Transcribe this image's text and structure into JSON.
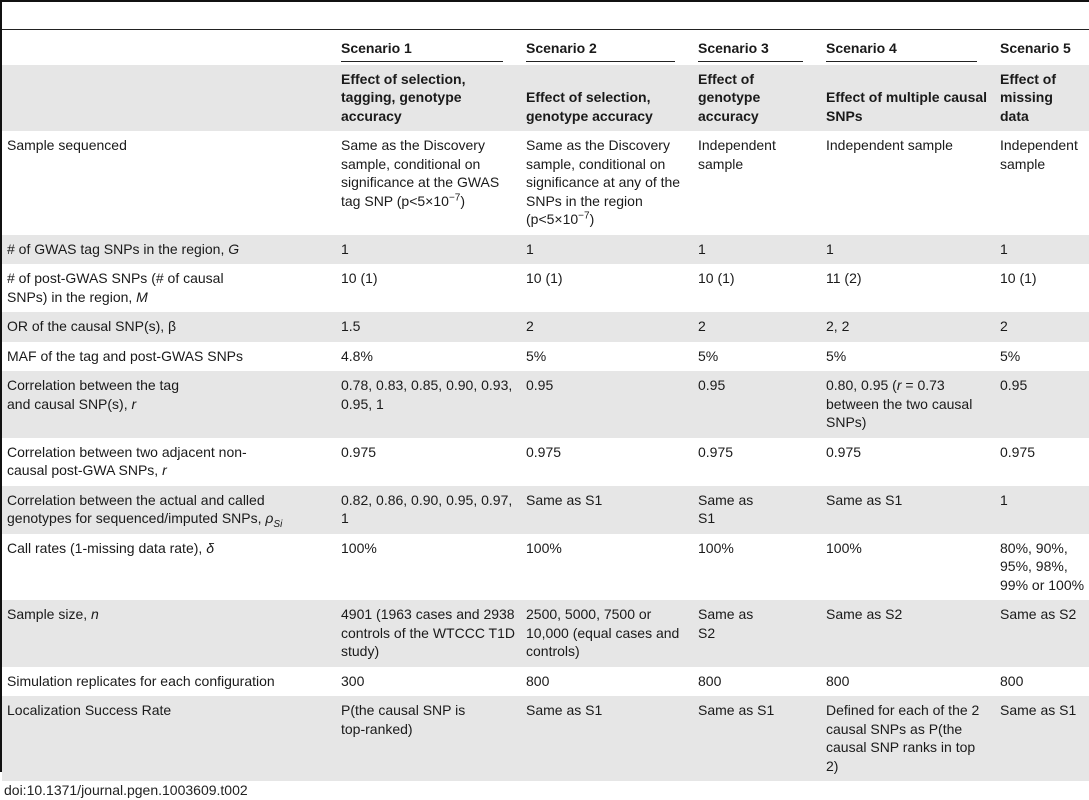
{
  "header": {
    "scenarios": [
      "Scenario 1",
      "Scenario 2",
      "Scenario 3",
      "Scenario 4",
      "Scenario 5"
    ],
    "effects": [
      "Effect of selection, tagging, genotype accuracy",
      "Effect of selection, genotype accuracy",
      "Effect of genotype accuracy",
      "Effect of multiple causal SNPs",
      "Effect of missing data"
    ]
  },
  "rows": {
    "sample_sequenced": {
      "label": "Sample sequenced",
      "s1_pre": "Same as the Discovery sample, conditional on significance at the GWAS tag SNP (p<5×10",
      "s1_exp": "−7",
      "s1_post": ")",
      "s2_pre": "Same as the Discovery sample, conditional on significance at any of the SNPs in the region (p<5×10",
      "s2_exp": "−7",
      "s2_post": ")",
      "s3": "Independent sample",
      "s4": "Independent sample",
      "s5": "Independent sample"
    },
    "gwas_tag": {
      "label": "# of GWAS tag SNPs in the region, ",
      "symbol": "G",
      "values": [
        "1",
        "1",
        "1",
        "1",
        "1"
      ]
    },
    "post_gwas": {
      "label": "# of post-GWAS SNPs (# of causal SNPs) in the region, ",
      "symbol": "M",
      "values": [
        "10 (1)",
        "10 (1)",
        "10 (1)",
        "11 (2)",
        "10 (1)"
      ]
    },
    "or_causal": {
      "label": "OR of the causal SNP(s), β",
      "values": [
        "1.5",
        "2",
        "2",
        "2, 2",
        "2"
      ]
    },
    "maf": {
      "label": "MAF of the tag and post-GWAS SNPs",
      "values": [
        "4.8%",
        "5%",
        "5%",
        "5%",
        "5%"
      ]
    },
    "corr_tag_causal": {
      "label": "Correlation between the tag and causal SNP(s), ",
      "symbol": "r",
      "s1": "0.78, 0.83, 0.85, 0.90, 0.93, 0.95, 1",
      "s2": "0.95",
      "s3": "0.95",
      "s4_pre": "0.80, 0.95 (",
      "s4_sym": "r",
      "s4_post": " = 0.73 between the two causal SNPs)",
      "s5": "0.95"
    },
    "corr_adjacent": {
      "label": "Correlation between two adjacent non-causal post-GWA SNPs, ",
      "symbol": "r",
      "values": [
        "0.975",
        "0.975",
        "0.975",
        "0.975",
        "0.975"
      ]
    },
    "corr_called": {
      "label": "Correlation between the actual and called genotypes for sequenced/imputed SNPs, ",
      "symbol": "ρ",
      "symbol_sub": "Si",
      "values": [
        "0.82, 0.86, 0.90, 0.95, 0.97, 1",
        "Same as S1",
        "Same as S1",
        "Same as S1",
        "1"
      ]
    },
    "call_rates": {
      "label": "Call rates (1-missing data rate), ",
      "symbol": "δ",
      "values": [
        "100%",
        "100%",
        "100%",
        "100%",
        "80%, 90%, 95%, 98%, 99% or 100%"
      ]
    },
    "sample_size": {
      "label": "Sample size, ",
      "symbol": "n",
      "values": [
        "4901 (1963 cases and 2938 controls of the WTCCC T1D study)",
        "2500, 5000, 7500 or 10,000 (equal cases and controls)",
        "Same as S2",
        "Same as S2",
        "Same as S2"
      ]
    },
    "replicates": {
      "label": "Simulation replicates for each configuration",
      "values": [
        "300",
        "800",
        "800",
        "800",
        "800"
      ]
    },
    "localization": {
      "label": "Localization Success Rate",
      "values": [
        "P(the causal SNP is top-ranked)",
        "Same as S1",
        "Same as S1",
        "Defined for each of the 2 causal SNPs as P(the causal SNP ranks in top 2)",
        "Same as S1"
      ]
    }
  },
  "footer": {
    "doi": "doi:10.1371/journal.pgen.1003609.t002"
  }
}
